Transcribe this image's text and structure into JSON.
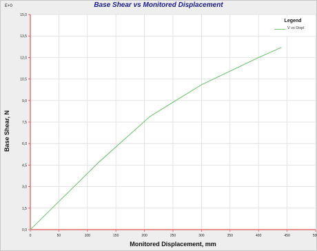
{
  "window": {
    "scale_label": "E+0"
  },
  "chart_data": {
    "type": "line",
    "title": "Base Shear vs Monitored Displacement",
    "xlabel": "Monitored Displacement, mm",
    "ylabel": "Base Shear, N",
    "xlim": [
      0,
      500
    ],
    "ylim": [
      0,
      15
    ],
    "x_ticks": [
      0,
      50,
      100,
      150,
      200,
      250,
      300,
      350,
      400,
      450,
      500
    ],
    "y_ticks": [
      0,
      1.5,
      3,
      4.5,
      6,
      7.5,
      9,
      10.5,
      12,
      13.5,
      15
    ],
    "x_tick_labels": [
      "0",
      "50",
      "100",
      "150",
      "200",
      "250",
      "300",
      "350",
      "400",
      "450",
      "500"
    ],
    "y_tick_labels": [
      "0,0",
      "1,5",
      "3,0",
      "4,5",
      "6,0",
      "7,5",
      "9,0",
      "10,5",
      "12,0",
      "13,5",
      "15,0"
    ],
    "grid": true,
    "legend": {
      "title": "Legend",
      "position": "top-right"
    },
    "series": [
      {
        "name": "V vs Displ",
        "color": "#7ec97e",
        "x": [
          0,
          120,
          210,
          300,
          400,
          440
        ],
        "y": [
          0,
          4.7,
          7.9,
          10.1,
          12.0,
          12.7
        ]
      }
    ],
    "axis_color": "#e05050"
  }
}
